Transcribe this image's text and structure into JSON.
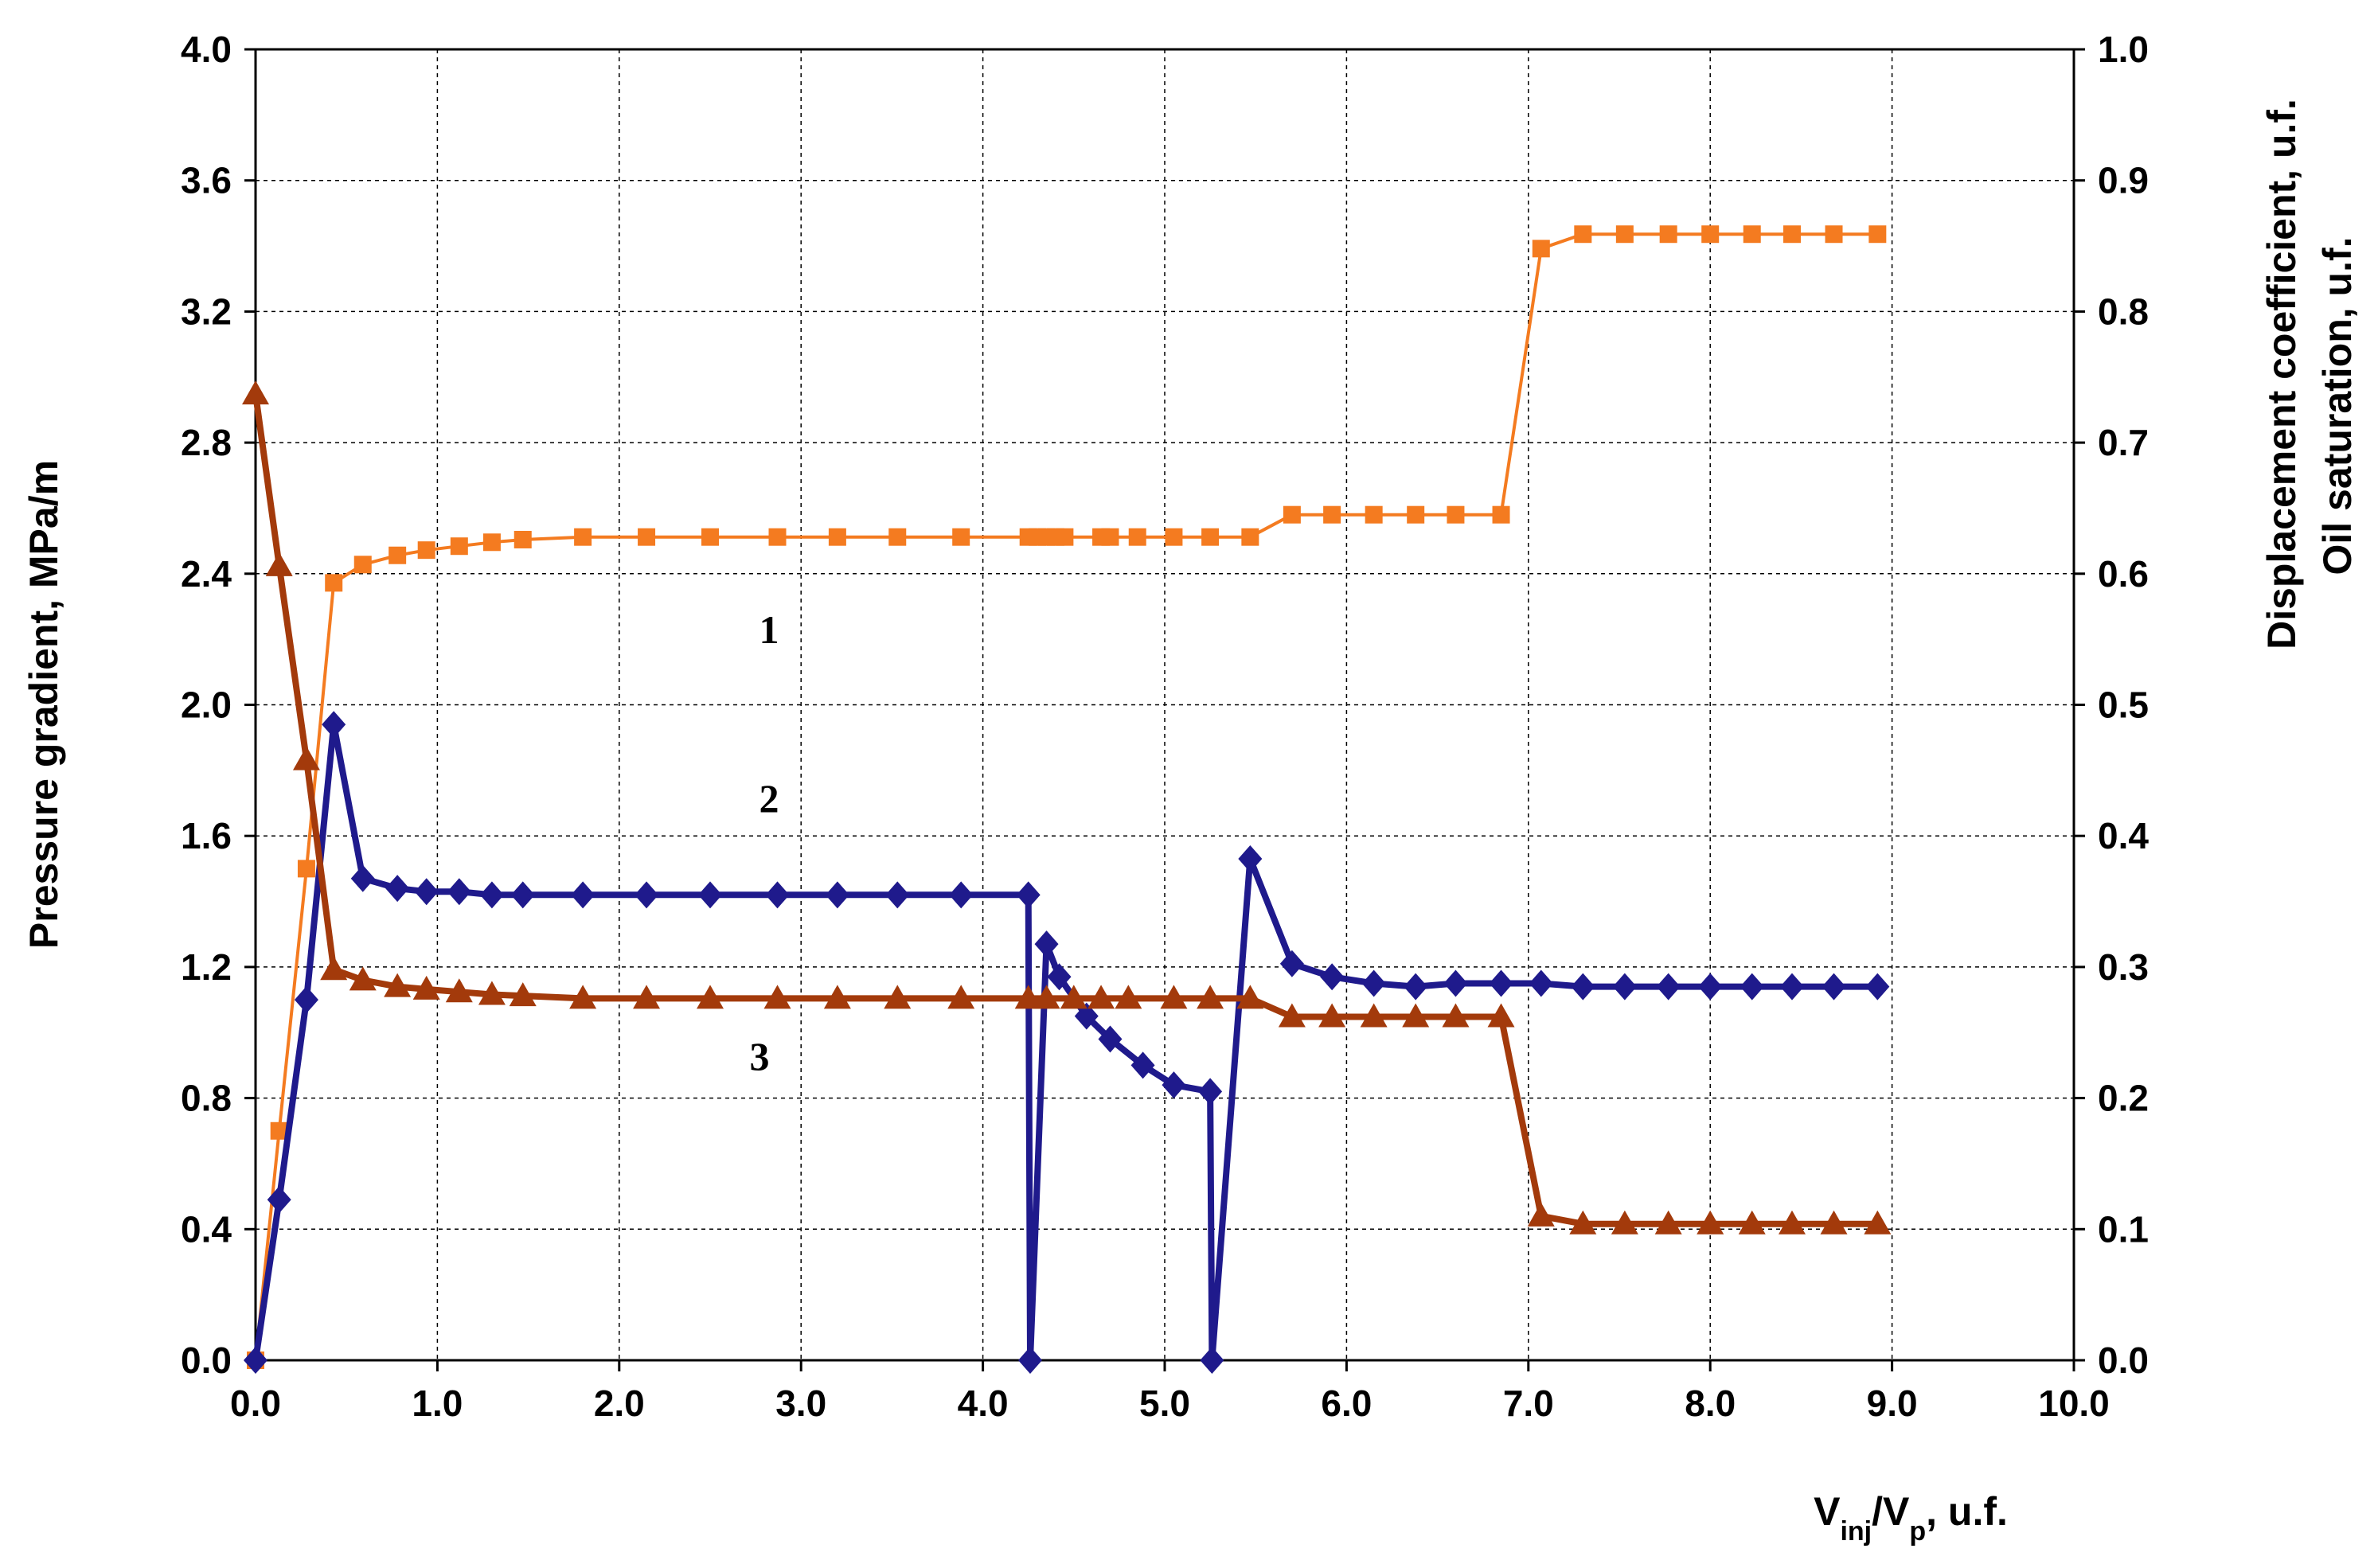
{
  "chart_data": {
    "type": "line",
    "title": "",
    "xlabel": {
      "main": "V",
      "sub1": "inj",
      "mid": "/V",
      "sub2": "p",
      "tail": ", u.f."
    },
    "ylabel": "Pressure gradient, MPa/m",
    "y2label": [
      "Displacement coefficient, u.f.",
      "Oil saturation, u.f."
    ],
    "xlim": [
      0,
      10
    ],
    "ylim": [
      0,
      4
    ],
    "y2lim": [
      0,
      1
    ],
    "grid": true,
    "x_ticks": [
      "0.0",
      "1.0",
      "2.0",
      "3.0",
      "4.0",
      "5.0",
      "6.0",
      "7.0",
      "8.0",
      "9.0",
      "10.0"
    ],
    "y_ticks": [
      "0.0",
      "0.4",
      "0.8",
      "1.2",
      "1.6",
      "2.0",
      "2.4",
      "2.8",
      "3.2",
      "3.6",
      "4.0"
    ],
    "y2_ticks": [
      "0.0",
      "0.1",
      "0.2",
      "0.3",
      "0.4",
      "0.5",
      "0.6",
      "0.7",
      "0.8",
      "0.9",
      "1.0"
    ],
    "curve_labels": [
      "1",
      "2",
      "3"
    ],
    "series": [
      {
        "id": "1",
        "axis": "right",
        "color": "#F47B20",
        "marker": "square",
        "x": [
          0,
          0.13,
          0.28,
          0.43,
          0.59,
          0.78,
          0.94,
          1.12,
          1.3,
          1.47,
          1.8,
          2.15,
          2.5,
          2.87,
          3.2,
          3.53,
          3.88,
          4.25,
          4.3,
          4.35,
          4.4,
          4.45,
          4.65,
          4.7,
          4.85,
          5.05,
          5.25,
          5.47,
          5.7,
          5.92,
          6.15,
          6.38,
          6.6,
          6.85,
          7.07,
          7.3,
          7.53,
          7.77,
          8.0,
          8.23,
          8.45,
          8.68,
          8.92
        ],
        "y": [
          0,
          0.175,
          0.375,
          0.593,
          0.607,
          0.614,
          0.618,
          0.621,
          0.624,
          0.626,
          0.628,
          0.628,
          0.628,
          0.628,
          0.628,
          0.628,
          0.628,
          0.628,
          0.628,
          0.628,
          0.628,
          0.628,
          0.628,
          0.628,
          0.628,
          0.628,
          0.628,
          0.628,
          0.645,
          0.645,
          0.645,
          0.645,
          0.645,
          0.645,
          0.848,
          0.859,
          0.859,
          0.859,
          0.859,
          0.859,
          0.859,
          0.859,
          0.859
        ]
      },
      {
        "id": "2",
        "axis": "left",
        "color": "#1F1A8C",
        "marker": "diamond",
        "x": [
          0,
          0.13,
          0.28,
          0.43,
          0.59,
          0.78,
          0.94,
          1.12,
          1.3,
          1.47,
          1.8,
          2.15,
          2.5,
          2.87,
          3.2,
          3.53,
          3.88,
          4.25,
          4.26,
          4.35,
          4.42,
          4.57,
          4.7,
          4.88,
          5.05,
          5.25,
          5.26,
          5.47,
          5.7,
          5.92,
          6.15,
          6.38,
          6.6,
          6.85,
          7.07,
          7.3,
          7.53,
          7.77,
          8.0,
          8.23,
          8.45,
          8.68,
          8.92
        ],
        "y": [
          0,
          0.49,
          1.1,
          1.94,
          1.47,
          1.44,
          1.43,
          1.43,
          1.42,
          1.42,
          1.42,
          1.42,
          1.42,
          1.42,
          1.42,
          1.42,
          1.42,
          1.42,
          0.0,
          1.27,
          1.17,
          1.05,
          0.98,
          0.9,
          0.84,
          0.82,
          0.0,
          1.53,
          1.21,
          1.17,
          1.15,
          1.14,
          1.15,
          1.15,
          1.15,
          1.14,
          1.14,
          1.14,
          1.14,
          1.14,
          1.14,
          1.14,
          1.14
        ]
      },
      {
        "id": "3",
        "axis": "right",
        "color": "#A33A0B",
        "marker": "triangle",
        "x": [
          0,
          0.13,
          0.28,
          0.43,
          0.59,
          0.78,
          0.94,
          1.12,
          1.3,
          1.47,
          1.8,
          2.15,
          2.5,
          2.87,
          3.2,
          3.53,
          3.88,
          4.25,
          4.35,
          4.5,
          4.65,
          4.8,
          5.05,
          5.25,
          5.47,
          5.7,
          5.92,
          6.15,
          6.38,
          6.6,
          6.85,
          7.07,
          7.3,
          7.53,
          7.77,
          8.0,
          8.23,
          8.45,
          8.68,
          8.92
        ],
        "y": [
          0.737,
          0.606,
          0.458,
          0.298,
          0.29,
          0.285,
          0.283,
          0.281,
          0.279,
          0.278,
          0.276,
          0.276,
          0.276,
          0.276,
          0.276,
          0.276,
          0.276,
          0.276,
          0.276,
          0.276,
          0.276,
          0.276,
          0.276,
          0.276,
          0.276,
          0.262,
          0.262,
          0.262,
          0.262,
          0.262,
          0.262,
          0.11,
          0.104,
          0.104,
          0.104,
          0.104,
          0.104,
          0.104,
          0.104,
          0.104
        ]
      }
    ]
  }
}
